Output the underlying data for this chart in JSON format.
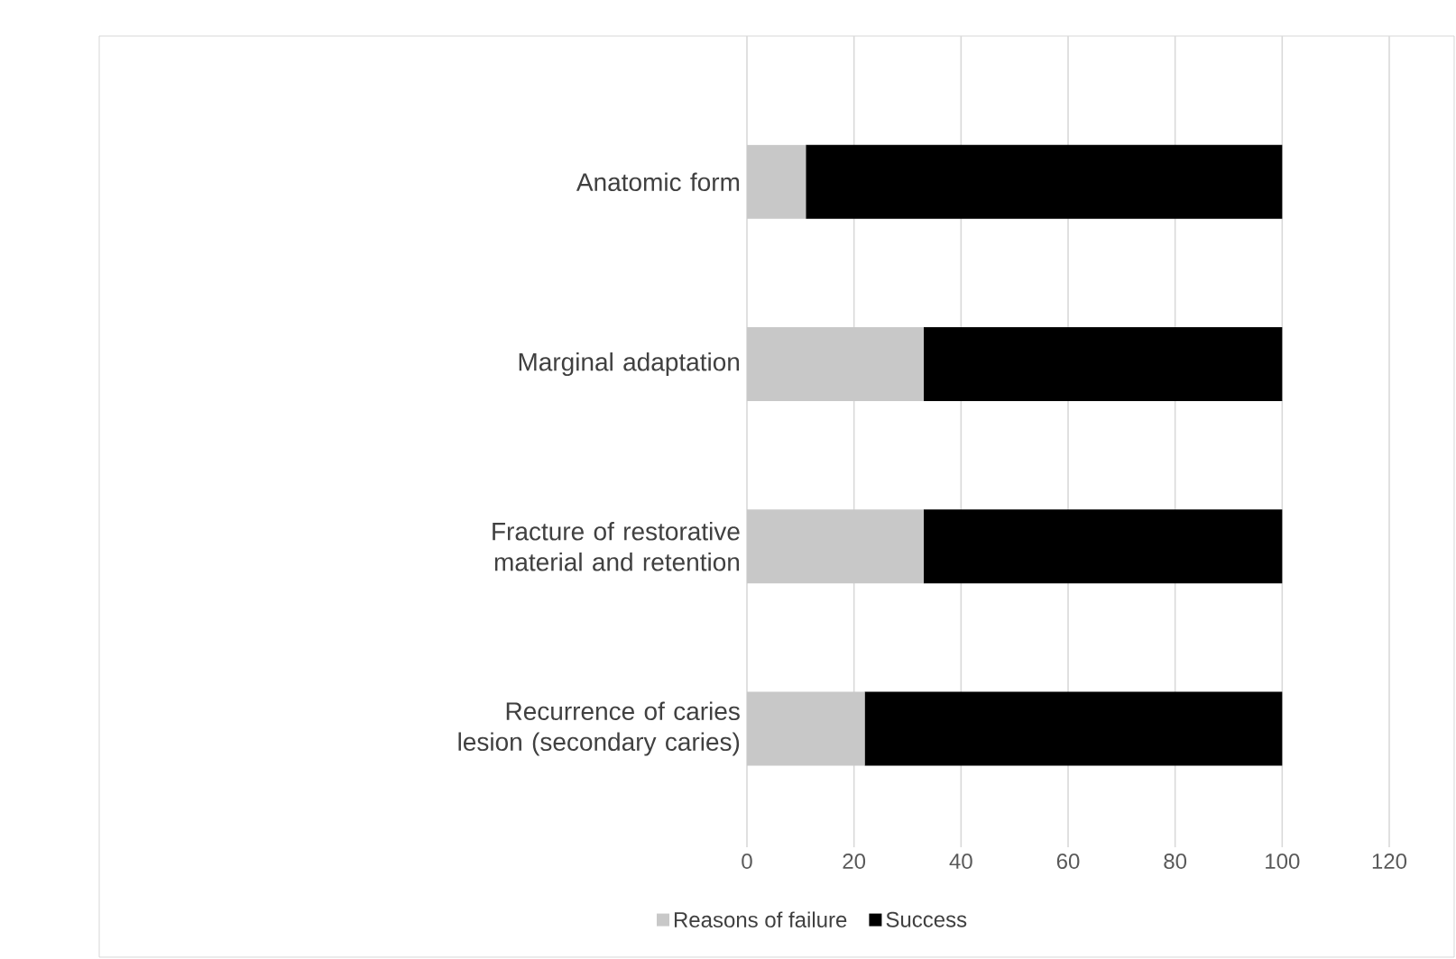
{
  "chart_data": {
    "type": "bar",
    "orientation": "horizontal",
    "stacked": true,
    "categories": [
      "Anatomic form",
      "Marginal adaptation",
      "Fracture of restorative material and retention",
      "Recurrence of caries lesion (secondary caries)"
    ],
    "series": [
      {
        "name": "Reasons of failure",
        "color": "#c8c8c8",
        "values": [
          11,
          33,
          33,
          22
        ]
      },
      {
        "name": "Success",
        "color": "#000000",
        "values": [
          89,
          67,
          67,
          78
        ]
      }
    ],
    "xlim": [
      0,
      120
    ],
    "xticks": [
      0,
      20,
      40,
      60,
      80,
      100,
      120
    ],
    "grid": "x",
    "legend": "bottom"
  }
}
